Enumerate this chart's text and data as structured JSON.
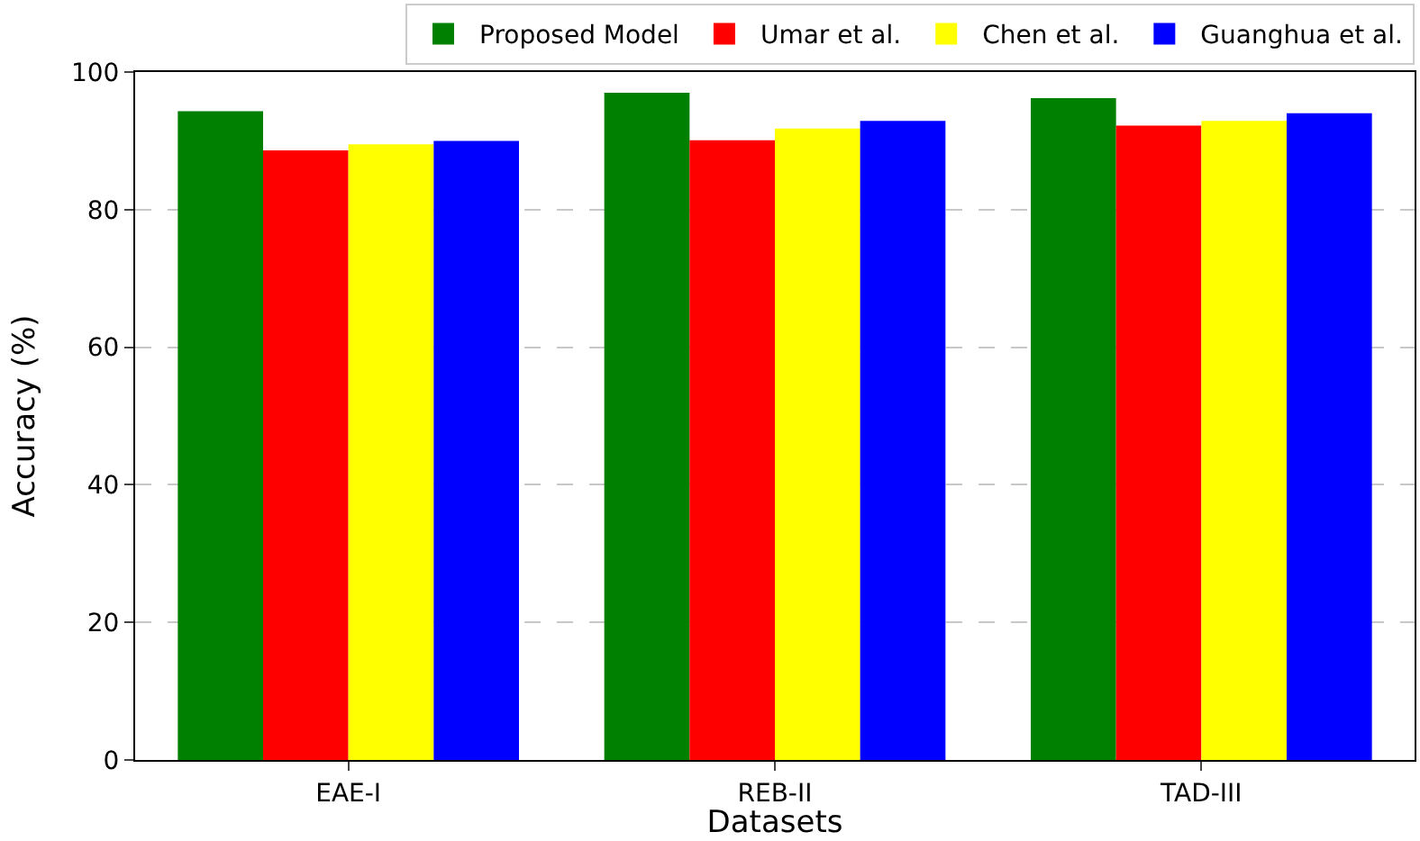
{
  "chart_data": {
    "type": "bar",
    "xlabel": "Datasets",
    "ylabel": "Accuracy (%)",
    "categories": [
      "EAE-I",
      "REB-II",
      "TAD-III"
    ],
    "series": [
      {
        "name": "Proposed Model",
        "color": "#008000",
        "values": [
          94.3,
          97.0,
          96.2
        ]
      },
      {
        "name": "Umar et al.",
        "color": "#ff0000",
        "values": [
          88.6,
          90.1,
          92.2
        ]
      },
      {
        "name": "Chen et al.",
        "color": "#ffff00",
        "values": [
          89.5,
          91.8,
          92.9
        ]
      },
      {
        "name": "Guanghua et al.",
        "color": "#0000ff",
        "values": [
          90.0,
          92.9,
          94.0
        ]
      }
    ],
    "ylim": [
      0,
      100
    ],
    "yticks": [
      0,
      20,
      40,
      60,
      80,
      100
    ],
    "grid": "y",
    "legend": "top"
  }
}
